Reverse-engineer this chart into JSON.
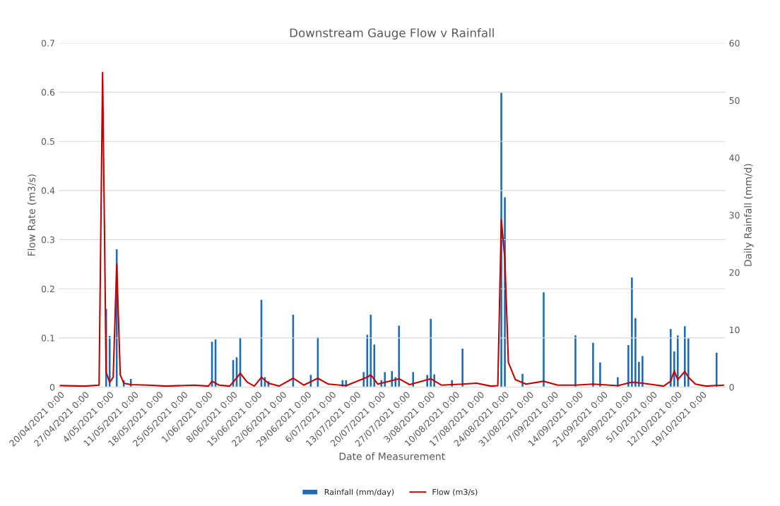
{
  "chart_data": {
    "type": "bar",
    "title": "Downstream Gauge Flow v Rainfall",
    "xlabel": "Date of Measurement",
    "ylabel": "Flow Rate (m3/s)",
    "y2label": "Daily Rainfall (mm/d)",
    "xlim": [
      "2021-04-19T12:00",
      "2021-10-25T12:00"
    ],
    "xticks": [
      {
        "value": "2021-04-20",
        "label": "20/04/2021 0:00"
      },
      {
        "value": "2021-04-27",
        "label": "27/04/2021 0:00"
      },
      {
        "value": "2021-05-04",
        "label": "4/05/2021 0:00"
      },
      {
        "value": "2021-05-11",
        "label": "11/05/2021 0:00"
      },
      {
        "value": "2021-05-18",
        "label": "18/05/2021 0:00"
      },
      {
        "value": "2021-05-25",
        "label": "25/05/2021 0:00"
      },
      {
        "value": "2021-06-01",
        "label": "1/06/2021 0:00"
      },
      {
        "value": "2021-06-08",
        "label": "8/06/2021 0:00"
      },
      {
        "value": "2021-06-15",
        "label": "15/06/2021 0:00"
      },
      {
        "value": "2021-06-22",
        "label": "22/06/2021 0:00"
      },
      {
        "value": "2021-06-29",
        "label": "29/06/2021 0:00"
      },
      {
        "value": "2021-07-06",
        "label": "6/07/2021 0:00"
      },
      {
        "value": "2021-07-13",
        "label": "13/07/2021 0:00"
      },
      {
        "value": "2021-07-20",
        "label": "20/07/2021 0:00"
      },
      {
        "value": "2021-07-27",
        "label": "27/07/2021 0:00"
      },
      {
        "value": "2021-08-03",
        "label": "3/08/2021 0:00"
      },
      {
        "value": "2021-08-10",
        "label": "10/08/2021 0:00"
      },
      {
        "value": "2021-08-17",
        "label": "17/08/2021 0:00"
      },
      {
        "value": "2021-08-24",
        "label": "24/08/2021 0:00"
      },
      {
        "value": "2021-08-31",
        "label": "31/08/2021 0:00"
      },
      {
        "value": "2021-09-07",
        "label": "7/09/2021 0:00"
      },
      {
        "value": "2021-09-14",
        "label": "14/09/2021 0:00"
      },
      {
        "value": "2021-09-21",
        "label": "21/09/2021 0:00"
      },
      {
        "value": "2021-09-28",
        "label": "28/09/2021 0:00"
      },
      {
        "value": "2021-10-05",
        "label": "5/10/2021 0:00"
      },
      {
        "value": "2021-10-12",
        "label": "12/10/2021 0:00"
      },
      {
        "value": "2021-10-19",
        "label": "19/10/2021 0:00"
      }
    ],
    "ylim": [
      0,
      0.7
    ],
    "yticks": [
      0,
      0.1,
      0.2,
      0.3,
      0.4,
      0.5,
      0.6,
      0.7
    ],
    "y2lim": [
      0,
      60
    ],
    "y2ticks": [
      0,
      10,
      20,
      30,
      40,
      50,
      60
    ],
    "grid": "y",
    "legend": "bottom",
    "series": [
      {
        "name": "Rainfall (mm/day)",
        "axis": "y2",
        "color": "#1f6bb5",
        "x": [
          "2021-05-03",
          "2021-05-04",
          "2021-05-06",
          "2021-05-08",
          "2021-05-10",
          "2021-06-02",
          "2021-06-03",
          "2021-06-08",
          "2021-06-09",
          "2021-06-10",
          "2021-06-16",
          "2021-06-17",
          "2021-06-18",
          "2021-06-25",
          "2021-06-30",
          "2021-07-02",
          "2021-07-09",
          "2021-07-10",
          "2021-07-15",
          "2021-07-16",
          "2021-07-17",
          "2021-07-18",
          "2021-07-20",
          "2021-07-21",
          "2021-07-23",
          "2021-07-24",
          "2021-07-25",
          "2021-07-29",
          "2021-08-02",
          "2021-08-03",
          "2021-08-04",
          "2021-08-09",
          "2021-08-12",
          "2021-08-23",
          "2021-08-24",
          "2021-08-29",
          "2021-09-04",
          "2021-09-13",
          "2021-09-18",
          "2021-09-20",
          "2021-09-25",
          "2021-09-28",
          "2021-09-29",
          "2021-09-30",
          "2021-10-01",
          "2021-10-02",
          "2021-10-10",
          "2021-10-11",
          "2021-10-12",
          "2021-10-14",
          "2021-10-15",
          "2021-10-23"
        ],
        "values": [
          13.7,
          9.0,
          24.1,
          1.3,
          1.5,
          8.0,
          8.4,
          4.8,
          5.3,
          8.7,
          15.3,
          1.8,
          1.1,
          12.7,
          2.2,
          8.8,
          1.3,
          1.3,
          2.7,
          9.2,
          12.7,
          7.5,
          1.3,
          2.7,
          2.9,
          1.8,
          10.8,
          2.7,
          2.2,
          12.0,
          2.3,
          1.3,
          6.8,
          51.4,
          33.2,
          2.4,
          16.6,
          9.1,
          7.8,
          4.4,
          1.8,
          7.4,
          19.2,
          12.1,
          4.5,
          5.5,
          10.2,
          6.3,
          9.1,
          10.7,
          8.6,
          6.1
        ]
      },
      {
        "name": "Flow (m3/s)",
        "type": "line",
        "axis": "y",
        "color": "#c00000",
        "x": [
          "2021-04-20",
          "2021-04-27",
          "2021-05-01",
          "2021-05-02",
          "2021-05-03",
          "2021-05-04",
          "2021-05-05",
          "2021-05-06",
          "2021-05-07",
          "2021-05-08",
          "2021-05-10",
          "2021-05-15",
          "2021-05-20",
          "2021-05-28",
          "2021-06-01",
          "2021-06-02",
          "2021-06-04",
          "2021-06-07",
          "2021-06-08",
          "2021-06-10",
          "2021-06-12",
          "2021-06-14",
          "2021-06-16",
          "2021-06-18",
          "2021-06-21",
          "2021-06-25",
          "2021-06-28",
          "2021-07-02",
          "2021-07-05",
          "2021-07-10",
          "2021-07-16",
          "2021-07-17",
          "2021-07-19",
          "2021-07-25",
          "2021-07-28",
          "2021-08-03",
          "2021-08-06",
          "2021-08-12",
          "2021-08-16",
          "2021-08-20",
          "2021-08-22",
          "2021-08-23",
          "2021-08-24",
          "2021-08-25",
          "2021-08-27",
          "2021-08-30",
          "2021-09-04",
          "2021-09-08",
          "2021-09-13",
          "2021-09-18",
          "2021-09-25",
          "2021-09-29",
          "2021-10-02",
          "2021-10-06",
          "2021-10-08",
          "2021-10-10",
          "2021-10-11",
          "2021-10-12",
          "2021-10-14",
          "2021-10-15",
          "2021-10-17",
          "2021-10-20",
          "2021-10-25"
        ],
        "values": [
          0.003,
          0.002,
          0.004,
          0.64,
          0.03,
          0.01,
          0.02,
          0.25,
          0.025,
          0.008,
          0.005,
          0.004,
          0.002,
          0.004,
          0.002,
          0.012,
          0.004,
          0.002,
          0.01,
          0.028,
          0.01,
          0.002,
          0.02,
          0.008,
          0.002,
          0.018,
          0.004,
          0.018,
          0.006,
          0.003,
          0.02,
          0.025,
          0.006,
          0.017,
          0.005,
          0.017,
          0.004,
          0.006,
          0.008,
          0.002,
          0.003,
          0.34,
          0.26,
          0.05,
          0.015,
          0.006,
          0.012,
          0.004,
          0.004,
          0.006,
          0.003,
          0.01,
          0.008,
          0.004,
          0.002,
          0.012,
          0.033,
          0.015,
          0.032,
          0.02,
          0.006,
          0.002,
          0.004
        ]
      }
    ]
  }
}
